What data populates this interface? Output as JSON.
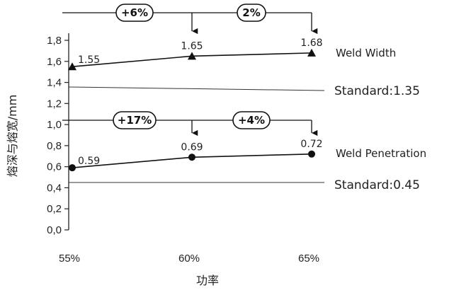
{
  "chart_data": {
    "type": "line",
    "x": [
      "55%",
      "60%",
      "65%"
    ],
    "xlabel": "功率",
    "ylabel": "熔深与熔宽/mm",
    "ylim": [
      0,
      1.8
    ],
    "yticks": [
      "0,0",
      "0,2",
      "0,4",
      "0,6",
      "0,8",
      "1,0",
      "1,2",
      "1,4",
      "1,6",
      "1,8"
    ],
    "grid": false,
    "series": [
      {
        "name": "Weld Width",
        "values": [
          1.55,
          1.65,
          1.68
        ],
        "value_labels": [
          "1.55",
          "1.65",
          "1.68"
        ],
        "marker": "triangle",
        "standard": {
          "value": 1.35,
          "label": "Standard:1.35"
        },
        "change_labels": [
          "+6%",
          "2%"
        ]
      },
      {
        "name": "Weld Penetration",
        "values": [
          0.59,
          0.69,
          0.72
        ],
        "value_labels": [
          "0.59",
          "0.69",
          "0.72"
        ],
        "marker": "circle",
        "standard": {
          "value": 0.45,
          "label": "Standard:0.45"
        },
        "change_labels": [
          "+17%",
          "+4%"
        ]
      }
    ]
  }
}
